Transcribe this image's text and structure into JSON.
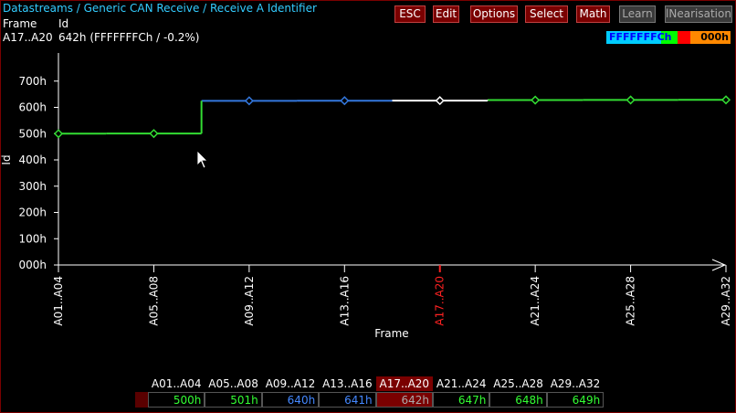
{
  "breadcrumb": "Datastreams / Generic CAN Receive / Receive A Identifier",
  "info": {
    "frame_label": "Frame",
    "id_label": "Id",
    "frame_value": "A17..A20",
    "id_value": "642h (FFFFFFFCh / -0.2%)"
  },
  "toolbar": {
    "buttons": [
      {
        "label": "ESC",
        "enabled": true
      },
      {
        "label": "Edit",
        "enabled": true
      },
      {
        "label": "Options",
        "enabled": true
      },
      {
        "label": "Select",
        "enabled": true
      },
      {
        "label": "Math",
        "enabled": true
      },
      {
        "label": "Learn",
        "enabled": false
      },
      {
        "label": "lNearisation",
        "enabled": false
      }
    ]
  },
  "legend": {
    "left_text": "FFFFFFFCh",
    "right_text": "000h",
    "colors": {
      "cyan": "#00ccff",
      "green": "#00ff00",
      "red": "#ff0000",
      "orange": "#ff8800"
    }
  },
  "chart_data": {
    "type": "line",
    "step": true,
    "xlabel": "Frame",
    "ylabel": "Id",
    "categories": [
      "A01..A04",
      "A05..A08",
      "A09..A12",
      "A13..A16",
      "A17..A20",
      "A21..A24",
      "A25..A28",
      "A29..A32"
    ],
    "selected_index": 4,
    "y_ticks": [
      "000h",
      "100h",
      "200h",
      "300h",
      "400h",
      "500h",
      "600h",
      "700h"
    ],
    "y_tick_values": [
      0,
      256,
      512,
      768,
      1024,
      1280,
      1536,
      1792
    ],
    "ylim": [
      0,
      2000
    ],
    "series": [
      {
        "values_hex": [
          "500h",
          "501h",
          "640h",
          "641h",
          "642h",
          "647h",
          "648h",
          "649h"
        ],
        "values": [
          1280,
          1281,
          1600,
          1601,
          1602,
          1607,
          1608,
          1609
        ]
      }
    ],
    "colors": {
      "green": "#33dd33",
      "blue": "#3377dd",
      "white": "#ffffff",
      "selected_tick": "#ff2222",
      "axis": "#ffffff"
    }
  },
  "table": {
    "headers": [
      "A01..A04",
      "A05..A08",
      "A09..A12",
      "A13..A16",
      "A17..A20",
      "A21..A24",
      "A25..A28",
      "A29..A32"
    ],
    "values": [
      "500h",
      "501h",
      "640h",
      "641h",
      "642h",
      "647h",
      "648h",
      "649h"
    ],
    "value_colors": [
      "#33ff33",
      "#33ff33",
      "#4488ff",
      "#4488ff",
      "#aaaaaa",
      "#33ff33",
      "#33ff33",
      "#33ff33"
    ],
    "selected_index": 4
  }
}
